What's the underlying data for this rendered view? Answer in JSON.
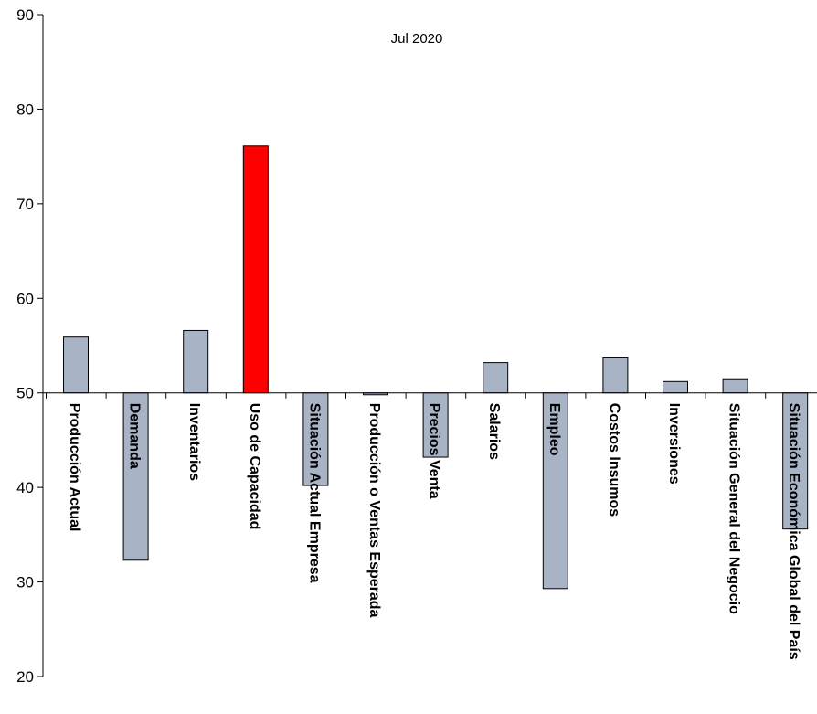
{
  "chart_data": {
    "type": "bar",
    "title": "Jul 2020",
    "xlabel": "",
    "ylabel": "",
    "ylim": [
      20,
      90
    ],
    "baseline": 50,
    "yticks": [
      20,
      30,
      40,
      50,
      60,
      70,
      80,
      90
    ],
    "ytick_labels": [
      "20",
      "30",
      "40",
      "50",
      "60",
      "70",
      "80",
      "90"
    ],
    "grid": false,
    "legend": "none",
    "categories": [
      "Producción Actual",
      "Demanda",
      "Inventarios",
      "Uso de Capacidad",
      "Situación Actual Empresa",
      "Producción o Ventas Esperada",
      "Precios Venta",
      "Salarios",
      "Empleo",
      "Costos Insumos",
      "Inversiones",
      "Situación General del Negocio",
      "Situación Económica Global del País"
    ],
    "values": [
      55.9,
      32.3,
      56.6,
      76.1,
      40.2,
      49.8,
      43.2,
      53.2,
      29.3,
      53.7,
      51.2,
      51.4,
      35.6
    ],
    "colors": {
      "default_bar": "#a9b3c6",
      "highlight_bar": "#ff0000",
      "bar_stroke": "#000000",
      "axis": "#000000"
    },
    "highlight_index": 3
  }
}
